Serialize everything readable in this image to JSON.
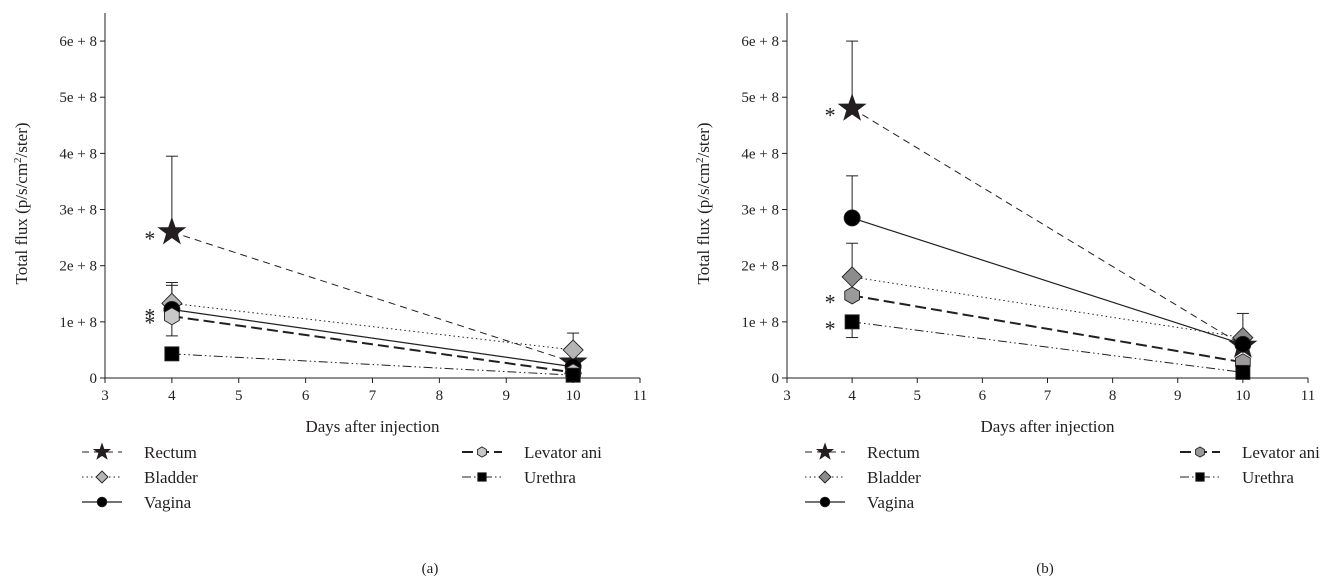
{
  "chart_data": [
    {
      "type": "line",
      "panel_label": "(a)",
      "xlabel": "Days after injection",
      "ylabel": "Total flux (p/s/cm²/ster)",
      "ylabel_parts": {
        "pre": "Total flux (p/s/cm",
        "sup": "2",
        "post": "/ster)"
      },
      "xlim": [
        3,
        11
      ],
      "ylim": [
        0,
        650000000
      ],
      "x_ticks": [
        3,
        4,
        5,
        6,
        7,
        8,
        9,
        10,
        11
      ],
      "y_ticks": [
        {
          "value": 0,
          "label": "0"
        },
        {
          "value": 100000000,
          "label": "1e + 8"
        },
        {
          "value": 200000000,
          "label": "2e + 8"
        },
        {
          "value": 300000000,
          "label": "3e + 8"
        },
        {
          "value": 400000000,
          "label": "4e + 8"
        },
        {
          "value": 500000000,
          "label": "5e + 8"
        },
        {
          "value": 600000000,
          "label": "6e + 8"
        }
      ],
      "x": [
        4,
        10
      ],
      "series": [
        {
          "name": "Rectum",
          "marker": "star",
          "dash": "dashed",
          "fill": "#231f20",
          "values": [
            260000000,
            28000000
          ],
          "err_upper": [
            395000000,
            null
          ],
          "err_lower": [
            null,
            null
          ],
          "significant": [
            true,
            false
          ]
        },
        {
          "name": "Bladder",
          "marker": "diamond",
          "dash": "dotted",
          "fill": "#b5b5b5",
          "values": [
            133000000,
            50000000
          ],
          "err_upper": [
            170000000,
            80000000
          ],
          "err_lower": [
            null,
            null
          ],
          "significant": [
            false,
            false
          ]
        },
        {
          "name": "Vagina",
          "marker": "circle",
          "dash": "solid",
          "fill": "#000000",
          "values": [
            122000000,
            20000000
          ],
          "err_upper": [
            165000000,
            null
          ],
          "err_lower": [
            null,
            null
          ],
          "significant": [
            true,
            false
          ]
        },
        {
          "name": "Levator ani",
          "marker": "hexagon",
          "dash": "long-dashed",
          "fill": "#c8c8c8",
          "values": [
            110000000,
            10000000
          ],
          "err_upper": [
            null,
            null
          ],
          "err_lower": [
            75000000,
            null
          ],
          "significant": [
            true,
            false
          ]
        },
        {
          "name": "Urethra",
          "marker": "square",
          "dash": "dash-dot-dot",
          "fill": "#000000",
          "values": [
            43000000,
            5000000
          ],
          "err_upper": [
            null,
            null
          ],
          "err_lower": [
            null,
            null
          ],
          "significant": [
            false,
            false
          ]
        }
      ],
      "asterisk": "*"
    },
    {
      "type": "line",
      "panel_label": "(b)",
      "xlabel": "Days after injection",
      "ylabel": "Total flux (p/s/cm²/ster)",
      "ylabel_parts": {
        "pre": "Total flux (p/s/cm",
        "sup": "2",
        "post": "/ster)"
      },
      "xlim": [
        3,
        11
      ],
      "ylim": [
        0,
        650000000
      ],
      "x_ticks": [
        3,
        4,
        5,
        6,
        7,
        8,
        9,
        10,
        11
      ],
      "y_ticks": [
        {
          "value": 0,
          "label": "0"
        },
        {
          "value": 100000000,
          "label": "1e + 8"
        },
        {
          "value": 200000000,
          "label": "2e + 8"
        },
        {
          "value": 300000000,
          "label": "3e + 8"
        },
        {
          "value": 400000000,
          "label": "4e + 8"
        },
        {
          "value": 500000000,
          "label": "5e + 8"
        },
        {
          "value": 600000000,
          "label": "6e + 8"
        }
      ],
      "x": [
        4,
        10
      ],
      "series": [
        {
          "name": "Rectum",
          "marker": "star",
          "dash": "dashed",
          "fill": "#231f20",
          "values": [
            480000000,
            58000000
          ],
          "err_upper": [
            600000000,
            null
          ],
          "err_lower": [
            null,
            null
          ],
          "significant": [
            true,
            false
          ]
        },
        {
          "name": "Bladder",
          "marker": "diamond",
          "dash": "dotted",
          "fill": "#8c8c8c",
          "values": [
            180000000,
            72000000
          ],
          "err_upper": [
            null,
            115000000
          ],
          "err_lower": [
            null,
            null
          ],
          "significant": [
            false,
            false
          ]
        },
        {
          "name": "Vagina",
          "marker": "circle",
          "dash": "solid",
          "fill": "#000000",
          "values": [
            285000000,
            60000000
          ],
          "err_upper": [
            360000000,
            null
          ],
          "err_lower": [
            null,
            null
          ],
          "significant": [
            false,
            false
          ]
        },
        {
          "name": "Levator ani",
          "marker": "hexagon",
          "dash": "long-dashed",
          "fill": "#9a9a9a",
          "values": [
            147000000,
            28000000
          ],
          "err_upper": [
            240000000,
            null
          ],
          "err_lower": [
            null,
            null
          ],
          "significant": [
            true,
            false
          ]
        },
        {
          "name": "Urethra",
          "marker": "square",
          "dash": "dash-dot-dot",
          "fill": "#000000",
          "values": [
            100000000,
            10000000
          ],
          "err_upper": [
            null,
            null
          ],
          "err_lower": [
            72000000,
            null
          ],
          "significant": [
            true,
            false
          ]
        }
      ],
      "asterisk": "*"
    }
  ],
  "legend_layout": {
    "columns": [
      [
        "Rectum",
        "Bladder",
        "Vagina"
      ],
      [
        "Levator ani",
        "Urethra"
      ]
    ]
  },
  "colors": {
    "ink": "#231f20",
    "background": "#ffffff"
  }
}
